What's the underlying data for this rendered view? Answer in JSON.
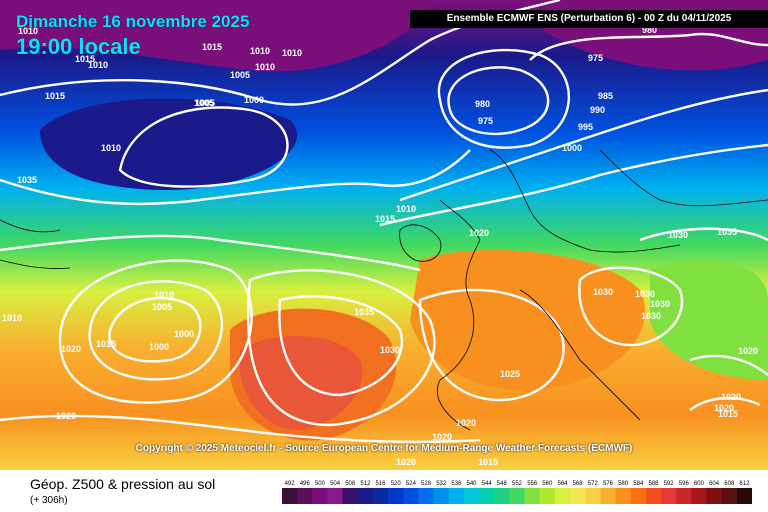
{
  "header": {
    "date": "Dimanche 16 novembre 2025",
    "time": "19:00 locale",
    "model": "Ensemble ECMWF ENS  (Perturbation 6)  -  00 Z du 04/11/2025"
  },
  "map": {
    "copyright": "Copyright © 2025 Meteociel.fr - Source European Centre for Medium-Range Weather Forecasts (ECMWF)",
    "pressure_labels": [
      "1010",
      "1015",
      "1010",
      "1010",
      "1010",
      "1005",
      "1015",
      "1010",
      "1005",
      "1000",
      "980",
      "975",
      "980",
      "975",
      "985",
      "990",
      "995",
      "1000",
      "1015",
      "1005",
      "1010",
      "1010",
      "1015",
      "1020",
      "1030",
      "1035",
      "1010",
      "1005",
      "1000",
      "1000",
      "1015",
      "1020",
      "1020",
      "1010",
      "1035",
      "1030",
      "1025",
      "1030",
      "1030",
      "1030",
      "1030",
      "1035",
      "1020",
      "1020",
      "1020",
      "1020",
      "1020",
      "1015",
      "1020",
      "1015"
    ]
  },
  "footer": {
    "title": "Géop. Z500 & pression au sol",
    "subtitle": "(+ 306h)"
  },
  "scale": {
    "labels": [
      "492",
      "496",
      "500",
      "504",
      "508",
      "512",
      "516",
      "520",
      "524",
      "528",
      "532",
      "536",
      "540",
      "544",
      "548",
      "552",
      "556",
      "560",
      "564",
      "568",
      "572",
      "576",
      "580",
      "584",
      "588",
      "592",
      "596",
      "600",
      "604",
      "608",
      "612"
    ],
    "colors": [
      "#3c0f36",
      "#5b0f5a",
      "#7a0f7a",
      "#8a1a8a",
      "#3a0f6a",
      "#1a1a8a",
      "#0a2aa0",
      "#0038c8",
      "#0050e0",
      "#0070f0",
      "#0090f0",
      "#00b0f0",
      "#00c8d8",
      "#00d0b0",
      "#20d080",
      "#40d860",
      "#80e040",
      "#b0e830",
      "#d8f040",
      "#f0e850",
      "#f8d040",
      "#f8b030",
      "#f89020",
      "#f87010",
      "#f05020",
      "#e83838",
      "#c82828",
      "#a81818",
      "#801010",
      "#581010",
      "#280808"
    ]
  }
}
